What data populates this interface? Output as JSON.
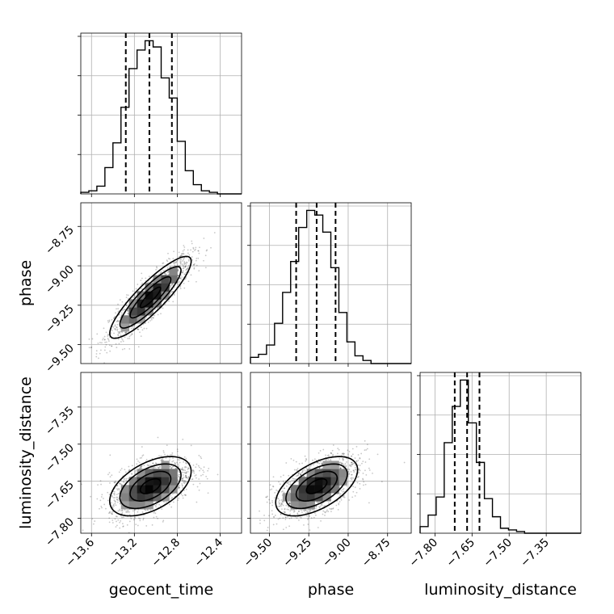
{
  "chart_data": {
    "type": "corner",
    "parameters": [
      "geocent_time",
      "phase",
      "luminosity_distance"
    ],
    "ranges": {
      "geocent_time": [
        -13.7,
        -12.2
      ],
      "phase": [
        -9.62,
        -8.6
      ],
      "luminosity_distance": [
        -7.86,
        -7.21
      ]
    },
    "ticks": {
      "geocent_time": [
        -13.6,
        -13.2,
        -12.8,
        -12.4
      ],
      "phase": [
        -9.5,
        -9.25,
        -9.0,
        -8.75
      ],
      "luminosity_distance": [
        -7.8,
        -7.65,
        -7.5,
        -7.35
      ]
    },
    "tick_labels": {
      "geocent_time": [
        "−13.6",
        "−13.2",
        "−12.8",
        "−12.4"
      ],
      "phase": [
        "−9.50",
        "−9.25",
        "−9.00",
        "−8.75"
      ],
      "luminosity_distance": [
        "−7.80",
        "−7.65",
        "−7.50",
        "−7.35"
      ]
    },
    "quantiles": {
      "geocent_time": [
        -13.28,
        -13.06,
        -12.85
      ],
      "phase": [
        -9.33,
        -9.2,
        -9.08
      ],
      "luminosity_distance": [
        -7.72,
        -7.67,
        -7.62
      ]
    },
    "histograms": {
      "geocent_time": {
        "bin_edges": [
          -13.7,
          -13.625,
          -13.55,
          -13.475,
          -13.4,
          -13.325,
          -13.25,
          -13.175,
          -13.1,
          -13.025,
          -12.95,
          -12.875,
          -12.8,
          -12.725,
          -12.65,
          -12.575,
          -12.5,
          -12.425,
          -12.35,
          -12.275,
          -12.2
        ],
        "counts": [
          0.01,
          0.02,
          0.05,
          0.17,
          0.33,
          0.56,
          0.81,
          0.93,
          0.99,
          0.95,
          0.75,
          0.62,
          0.34,
          0.15,
          0.06,
          0.02,
          0.01,
          0.0,
          0.0,
          0.0
        ]
      },
      "phase": {
        "bin_edges": [
          -9.62,
          -9.569,
          -9.518,
          -9.467,
          -9.416,
          -9.365,
          -9.314,
          -9.263,
          -9.212,
          -9.161,
          -9.11,
          -9.059,
          -9.008,
          -8.957,
          -8.906,
          -8.855,
          -8.804,
          -8.753,
          -8.702,
          -8.651,
          -8.6
        ],
        "counts": [
          0.04,
          0.06,
          0.12,
          0.26,
          0.46,
          0.66,
          0.88,
          0.99,
          0.96,
          0.85,
          0.62,
          0.33,
          0.14,
          0.05,
          0.02,
          0.0,
          0.0,
          0.0,
          0.0,
          0.0
        ]
      },
      "luminosity_distance": {
        "bin_edges": [
          -7.86,
          -7.8275,
          -7.795,
          -7.7625,
          -7.73,
          -7.6975,
          -7.665,
          -7.6325,
          -7.6,
          -7.5675,
          -7.535,
          -7.5025,
          -7.47,
          -7.4375,
          -7.405,
          -7.3725,
          -7.34,
          -7.3075,
          -7.275,
          -7.2425,
          -7.21
        ],
        "counts": [
          0.04,
          0.11,
          0.22,
          0.55,
          0.77,
          0.93,
          0.67,
          0.43,
          0.21,
          0.1,
          0.03,
          0.02,
          0.01,
          0.0,
          0.0,
          0.0,
          0.0,
          0.0,
          0.0,
          0.0
        ]
      }
    },
    "pairs": [
      {
        "x": "geocent_time",
        "y": "phase",
        "mean": [
          -13.05,
          -9.2
        ],
        "sd": [
          0.19,
          0.13
        ],
        "rho": 0.88
      },
      {
        "x": "geocent_time",
        "y": "luminosity_distance",
        "mean": [
          -13.05,
          -7.67
        ],
        "sd": [
          0.19,
          0.06
        ],
        "rho": 0.5
      },
      {
        "x": "phase",
        "y": "luminosity_distance",
        "mean": [
          -9.2,
          -7.67
        ],
        "sd": [
          0.13,
          0.06
        ],
        "rho": 0.55
      }
    ],
    "contour_levels_sigma": [
      0.5,
      1.0,
      1.5,
      2.0
    ],
    "grid": true
  }
}
